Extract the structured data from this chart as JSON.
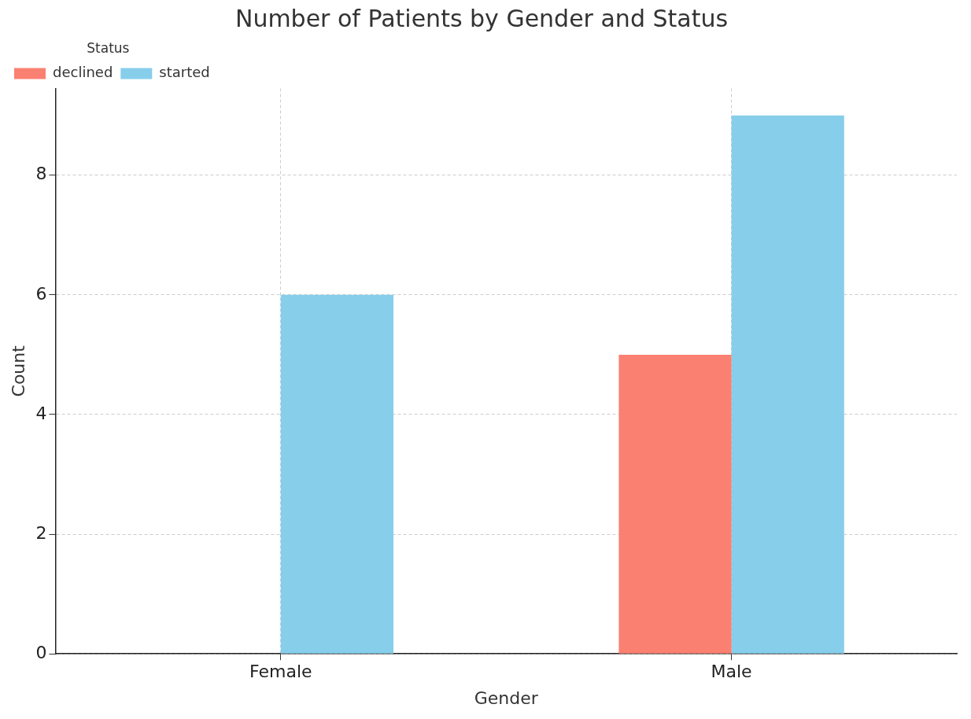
{
  "chart_data": {
    "type": "bar",
    "title": "Number of Patients by Gender and Status",
    "xlabel": "Gender",
    "ylabel": "Count",
    "legend_title": "Status",
    "categories": [
      "Female",
      "Male"
    ],
    "series": [
      {
        "name": "declined",
        "color": "#fa8072",
        "values": [
          null,
          5
        ]
      },
      {
        "name": "started",
        "color": "#87ceeb",
        "values": [
          6,
          9
        ]
      }
    ],
    "ylim": [
      0,
      9.45
    ],
    "yticks": [
      0,
      2,
      4,
      6,
      8
    ],
    "grid": true,
    "legend": "top left"
  }
}
